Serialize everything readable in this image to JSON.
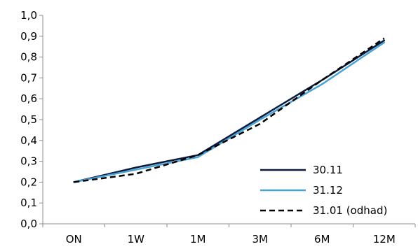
{
  "chart_data": {
    "type": "line",
    "categories": [
      "ON",
      "1W",
      "1M",
      "3M",
      "6M",
      "12M"
    ],
    "ylim": [
      0.0,
      1.0
    ],
    "yticks": [
      "0,0",
      "0,1",
      "0,2",
      "0,3",
      "0,4",
      "0,5",
      "0,6",
      "0,7",
      "0,8",
      "0,9",
      "1,0"
    ],
    "grid": false,
    "legend_position": "bottom-right",
    "series": [
      {
        "name": "30.11",
        "values": [
          0.2,
          0.27,
          0.33,
          0.51,
          0.69,
          0.88
        ],
        "color": "#0d1b3e",
        "dash": "solid"
      },
      {
        "name": "31.12",
        "values": [
          0.2,
          0.26,
          0.32,
          0.5,
          0.67,
          0.87
        ],
        "color": "#4aa3d6",
        "dash": "solid"
      },
      {
        "name": "31.01 (odhad)",
        "values": [
          0.2,
          0.24,
          0.33,
          0.48,
          0.69,
          0.89
        ],
        "color": "#000000",
        "dash": "dashed"
      }
    ]
  }
}
